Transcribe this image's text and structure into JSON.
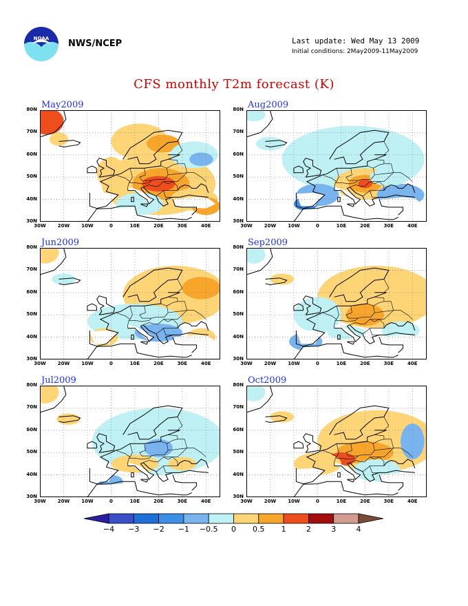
{
  "header": {
    "org": "NWS/NCEP",
    "last_update": "Last update: Wed May 13 2009",
    "initial_conditions": "Initial conditions: 2May2009-11May2009",
    "logo_text": "NOAA"
  },
  "title": "CFS monthly T2m forecast (K)",
  "axes": {
    "lat_labels": [
      "80N",
      "70N",
      "60N",
      "50N",
      "40N",
      "30N"
    ],
    "lon_labels": [
      "30W",
      "20W",
      "10W",
      "0",
      "10E",
      "20E",
      "30E",
      "40E"
    ]
  },
  "panels": [
    {
      "title": "May2009",
      "col": 0,
      "row": 0,
      "blobs": [
        {
          "lon": 20,
          "lat": 47,
          "rx": 24,
          "ry": 14,
          "color": "#fdd576"
        },
        {
          "lon": 21,
          "lat": 47,
          "rx": 12,
          "ry": 7,
          "color": "#f7a52b"
        },
        {
          "lon": 20,
          "lat": 47,
          "rx": 7,
          "ry": 3.5,
          "color": "#ee4e1c"
        },
        {
          "lon": 12,
          "lat": 66,
          "rx": 12,
          "ry": 8,
          "color": "#fdd576"
        },
        {
          "lon": 22,
          "lat": 65,
          "rx": 7,
          "ry": 4,
          "color": "#f7a52b"
        },
        {
          "lon": 35,
          "lat": 60,
          "rx": 10,
          "ry": 6,
          "color": "#bff0f4"
        },
        {
          "lon": 38,
          "lat": 58,
          "rx": 5,
          "ry": 3,
          "color": "#7ab4ef"
        },
        {
          "lon": -27,
          "lat": 75,
          "rx": 7,
          "ry": 6,
          "color": "#ee4e1c"
        },
        {
          "lon": -22,
          "lat": 67,
          "rx": 4,
          "ry": 3,
          "color": "#fdd576"
        },
        {
          "lon": 0,
          "lat": 52,
          "rx": 6,
          "ry": 7,
          "color": "#fdd576"
        },
        {
          "lon": 35,
          "lat": 40,
          "rx": 10,
          "ry": 5,
          "color": "#fdd576"
        },
        {
          "lon": 40,
          "lat": 37,
          "rx": 6,
          "ry": 4,
          "color": "#f7a52b"
        },
        {
          "lon": 12,
          "lat": 38,
          "rx": 10,
          "ry": 5,
          "color": "#bff0f4"
        }
      ]
    },
    {
      "title": "Aug2009",
      "col": 1,
      "row": 0,
      "blobs": [
        {
          "lon": 15,
          "lat": 58,
          "rx": 30,
          "ry": 15,
          "color": "#bff0f4"
        },
        {
          "lon": 20,
          "lat": 47,
          "rx": 13,
          "ry": 7,
          "color": "#fdd576"
        },
        {
          "lon": 20,
          "lat": 47,
          "rx": 7,
          "ry": 4,
          "color": "#f7a52b"
        },
        {
          "lon": 20,
          "lat": 47,
          "rx": 3,
          "ry": 2,
          "color": "#ee4e1c"
        },
        {
          "lon": 0,
          "lat": 42,
          "rx": 9,
          "ry": 5,
          "color": "#7ab4ef"
        },
        {
          "lon": -5,
          "lat": 38,
          "rx": 5,
          "ry": 3,
          "color": "#3e8fe6"
        },
        {
          "lon": 35,
          "lat": 42,
          "rx": 10,
          "ry": 5,
          "color": "#7ab4ef"
        },
        {
          "lon": 30,
          "lat": 50,
          "rx": 8,
          "ry": 4,
          "color": "#bff0f4"
        },
        {
          "lon": -20,
          "lat": 65,
          "rx": 6,
          "ry": 3,
          "color": "#bff0f4"
        },
        {
          "lon": -27,
          "lat": 78,
          "rx": 5,
          "ry": 3,
          "color": "#bff0f4"
        }
      ]
    },
    {
      "title": "Jun2009",
      "col": 0,
      "row": 1,
      "blobs": [
        {
          "lon": 27,
          "lat": 59,
          "rx": 22,
          "ry": 13,
          "color": "#fdd576"
        },
        {
          "lon": 38,
          "lat": 62,
          "rx": 8,
          "ry": 5,
          "color": "#f7a52b"
        },
        {
          "lon": 10,
          "lat": 47,
          "rx": 20,
          "ry": 8,
          "color": "#bff0f4"
        },
        {
          "lon": 20,
          "lat": 42,
          "rx": 10,
          "ry": 4,
          "color": "#7ab4ef"
        },
        {
          "lon": -3,
          "lat": 40,
          "rx": 6,
          "ry": 4,
          "color": "#fdd576"
        },
        {
          "lon": -5,
          "lat": 40,
          "rx": 3,
          "ry": 2,
          "color": "#f7a52b"
        },
        {
          "lon": 38,
          "lat": 40,
          "rx": 6,
          "ry": 4,
          "color": "#fdd576"
        },
        {
          "lon": -28,
          "lat": 78,
          "rx": 6,
          "ry": 5,
          "color": "#fdd576"
        },
        {
          "lon": -20,
          "lat": 66,
          "rx": 5,
          "ry": 2.5,
          "color": "#bff0f4"
        }
      ]
    },
    {
      "title": "Sep2009",
      "col": 1,
      "row": 1,
      "blobs": [
        {
          "lon": 25,
          "lat": 58,
          "rx": 25,
          "ry": 14,
          "color": "#fdd576"
        },
        {
          "lon": 20,
          "lat": 50,
          "rx": 8,
          "ry": 5,
          "color": "#f7a52b"
        },
        {
          "lon": 0,
          "lat": 50,
          "rx": 10,
          "ry": 8,
          "color": "#bff0f4"
        },
        {
          "lon": -5,
          "lat": 38,
          "rx": 7,
          "ry": 4,
          "color": "#7ab4ef"
        },
        {
          "lon": 12,
          "lat": 42,
          "rx": 8,
          "ry": 3,
          "color": "#bff0f4"
        },
        {
          "lon": 35,
          "lat": 43,
          "rx": 8,
          "ry": 4,
          "color": "#bff0f4"
        },
        {
          "lon": -15,
          "lat": 66,
          "rx": 5,
          "ry": 2.5,
          "color": "#fdd576"
        },
        {
          "lon": -27,
          "lat": 77,
          "rx": 5,
          "ry": 4,
          "color": "#bff0f4"
        }
      ]
    },
    {
      "title": "Jul2009",
      "col": 0,
      "row": 2,
      "blobs": [
        {
          "lon": 20,
          "lat": 55,
          "rx": 28,
          "ry": 15,
          "color": "#bff0f4"
        },
        {
          "lon": 20,
          "lat": 52,
          "rx": 6,
          "ry": 4,
          "color": "#7ab4ef"
        },
        {
          "lon": 10,
          "lat": 45,
          "rx": 10,
          "ry": 4,
          "color": "#fdd576"
        },
        {
          "lon": 30,
          "lat": 45,
          "rx": 6,
          "ry": 3,
          "color": "#fdd576"
        },
        {
          "lon": 0,
          "lat": 37,
          "rx": 5,
          "ry": 3,
          "color": "#7ab4ef"
        },
        {
          "lon": -28,
          "lat": 77,
          "rx": 6,
          "ry": 5,
          "color": "#fdd576"
        },
        {
          "lon": -18,
          "lat": 65,
          "rx": 5,
          "ry": 2.5,
          "color": "#fdd576"
        }
      ]
    },
    {
      "title": "Oct2009",
      "col": 1,
      "row": 2,
      "blobs": [
        {
          "lon": 25,
          "lat": 55,
          "rx": 25,
          "ry": 14,
          "color": "#fdd576"
        },
        {
          "lon": 20,
          "lat": 50,
          "rx": 12,
          "ry": 5,
          "color": "#f7a52b"
        },
        {
          "lon": 10,
          "lat": 47,
          "rx": 6,
          "ry": 3,
          "color": "#ee4e1c"
        },
        {
          "lon": 40,
          "lat": 55,
          "rx": 5,
          "ry": 8,
          "color": "#7ab4ef"
        },
        {
          "lon": 0,
          "lat": 45,
          "rx": 10,
          "ry": 5,
          "color": "#fdd576"
        },
        {
          "lon": 25,
          "lat": 42,
          "rx": 10,
          "ry": 5,
          "color": "#bff0f4"
        },
        {
          "lon": -15,
          "lat": 66,
          "rx": 5,
          "ry": 2.5,
          "color": "#fdd576"
        },
        {
          "lon": -27,
          "lat": 77,
          "rx": 5,
          "ry": 4,
          "color": "#bff0f4"
        }
      ]
    }
  ],
  "colorbar": {
    "labels": [
      "−4",
      "−3",
      "−2",
      "−1",
      "−0.5",
      "0",
      "0.5",
      "1",
      "2",
      "3",
      "4"
    ],
    "colors": [
      "#2a1f9c",
      "#3a4ec8",
      "#1f6fd8",
      "#3e8fe6",
      "#7ab4ef",
      "#bff0f4",
      "#fdd576",
      "#f7a52b",
      "#ee4e1c",
      "#a00e0e",
      "#d29b90",
      "#7b4a3a"
    ]
  }
}
